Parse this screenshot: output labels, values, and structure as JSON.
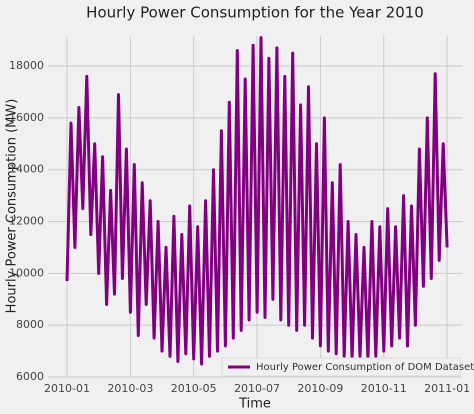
{
  "chart_data": {
    "type": "line",
    "title": "Hourly Power Consumption for the Year 2010",
    "x_label": "Time",
    "y_label": "Hourly Power Consumption (MW)",
    "x": [
      0,
      0.125,
      0.25,
      0.375,
      0.5,
      0.625,
      0.75,
      0.875,
      1,
      1.125,
      1.25,
      1.375,
      1.5,
      1.625,
      1.75,
      1.875,
      2,
      2.125,
      2.25,
      2.375,
      2.5,
      2.625,
      2.75,
      2.875,
      3,
      3.125,
      3.25,
      3.375,
      3.5,
      3.625,
      3.75,
      3.875,
      4,
      4.125,
      4.25,
      4.375,
      4.5,
      4.625,
      4.75,
      4.875,
      5,
      5.125,
      5.25,
      5.375,
      5.5,
      5.625,
      5.75,
      5.875,
      6,
      6.125,
      6.25,
      6.375,
      6.5,
      6.625,
      6.75,
      6.875,
      7,
      7.125,
      7.25,
      7.375,
      7.5,
      7.625,
      7.75,
      7.875,
      8,
      8.125,
      8.25,
      8.375,
      8.5,
      8.625,
      8.75,
      8.875,
      9,
      9.125,
      9.25,
      9.375,
      9.5,
      9.625,
      9.75,
      9.875,
      10,
      10.125,
      10.25,
      10.375,
      10.5,
      10.625,
      10.75,
      10.875,
      11,
      11.125,
      11.25,
      11.375,
      11.5,
      11.625,
      11.75,
      11.875,
      12
    ],
    "series": [
      {
        "name": "Hourly Power Consumption of DOM Dataset (MW)",
        "color": "#800080",
        "values": [
          9700,
          15800,
          11000,
          16400,
          12500,
          17600,
          11500,
          15000,
          10000,
          14500,
          8800,
          13200,
          9200,
          16900,
          9800,
          14800,
          8500,
          14200,
          7600,
          13500,
          8800,
          12800,
          7500,
          12000,
          7000,
          11000,
          6800,
          12200,
          6600,
          11500,
          6900,
          12600,
          6700,
          11800,
          6500,
          12800,
          6800,
          14000,
          7000,
          15500,
          7200,
          16600,
          7500,
          18600,
          7800,
          17500,
          8200,
          18800,
          8500,
          19100,
          8300,
          18300,
          9000,
          18700,
          8200,
          17600,
          8000,
          18500,
          7800,
          16500,
          8000,
          17200,
          7500,
          15000,
          7200,
          16000,
          7000,
          13500,
          6900,
          14200,
          6800,
          12000,
          6700,
          11500,
          6800,
          11000,
          6700,
          12000,
          6800,
          11800,
          7000,
          12500,
          7200,
          11800,
          7500,
          13000,
          7200,
          12600,
          8000,
          14800,
          9500,
          16000,
          9800,
          17700,
          10500,
          15000,
          11000
        ]
      }
    ],
    "xlim": [
      -0.6,
      12.47
    ],
    "xticks": [
      {
        "value": 0,
        "label": "2010-01"
      },
      {
        "value": 2,
        "label": "2010-03"
      },
      {
        "value": 4,
        "label": "2010-05"
      },
      {
        "value": 6,
        "label": "2010-07"
      },
      {
        "value": 8,
        "label": "2010-09"
      },
      {
        "value": 10,
        "label": "2010-11"
      },
      {
        "value": 12,
        "label": "2011-01"
      }
    ],
    "ylim": [
      6000,
      19160
    ],
    "yticks": [
      6000,
      8000,
      10000,
      12000,
      14000,
      16000,
      18000
    ],
    "grid": true,
    "legend": "lower right"
  }
}
